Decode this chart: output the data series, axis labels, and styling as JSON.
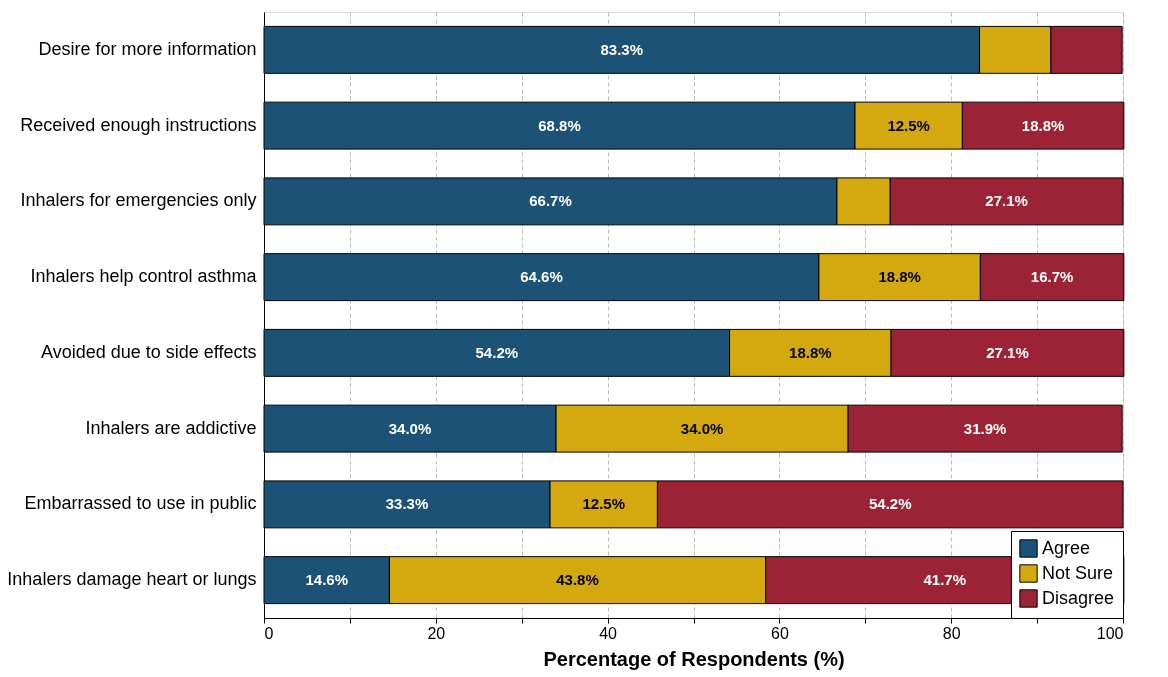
{
  "chart_data": {
    "type": "bar",
    "orientation": "horizontal",
    "stacked": true,
    "categories": [
      "Desire for more information",
      "Received enough instructions",
      "Inhalers for emergencies only",
      "Inhalers help control asthma",
      "Avoided due to side effects",
      "Inhalers are addictive",
      "Embarrassed to use in public",
      "Inhalers damage heart or lungs"
    ],
    "series": [
      {
        "name": "Agree",
        "color": "#1c5275",
        "values": [
          83.3,
          68.8,
          66.7,
          64.6,
          54.2,
          34.0,
          33.3,
          14.6
        ],
        "value_labels": [
          "83.3%",
          "68.8%",
          "66.7%",
          "64.6%",
          "54.2%",
          "34.0%",
          "33.3%",
          "14.6%"
        ]
      },
      {
        "name": "Not Sure",
        "color": "#d4a90f",
        "values": [
          8.3,
          12.5,
          6.2,
          18.8,
          18.8,
          34.0,
          12.5,
          43.8
        ],
        "value_labels": [
          null,
          "12.5%",
          null,
          "18.8%",
          "18.8%",
          "34.0%",
          "12.5%",
          "43.8%"
        ]
      },
      {
        "name": "Disagree",
        "color": "#9b2335",
        "values": [
          8.3,
          18.8,
          27.1,
          16.7,
          27.1,
          31.9,
          54.2,
          41.7
        ],
        "value_labels": [
          null,
          "18.8%",
          "27.1%",
          "16.7%",
          "27.1%",
          "31.9%",
          "54.2%",
          "41.7%"
        ]
      }
    ],
    "xlabel": "Percentage of Respondents (%)",
    "xlim": [
      0,
      100
    ],
    "xticks": [
      0,
      {
        "value": 10,
        "label": null
      },
      20,
      {
        "value": 30,
        "label": null
      },
      40,
      {
        "value": 50,
        "label": null
      },
      60,
      {
        "value": 70,
        "label": null
      },
      80,
      {
        "value": 90,
        "label": null
      },
      100
    ],
    "grid": "x",
    "legend": "bottom right"
  }
}
